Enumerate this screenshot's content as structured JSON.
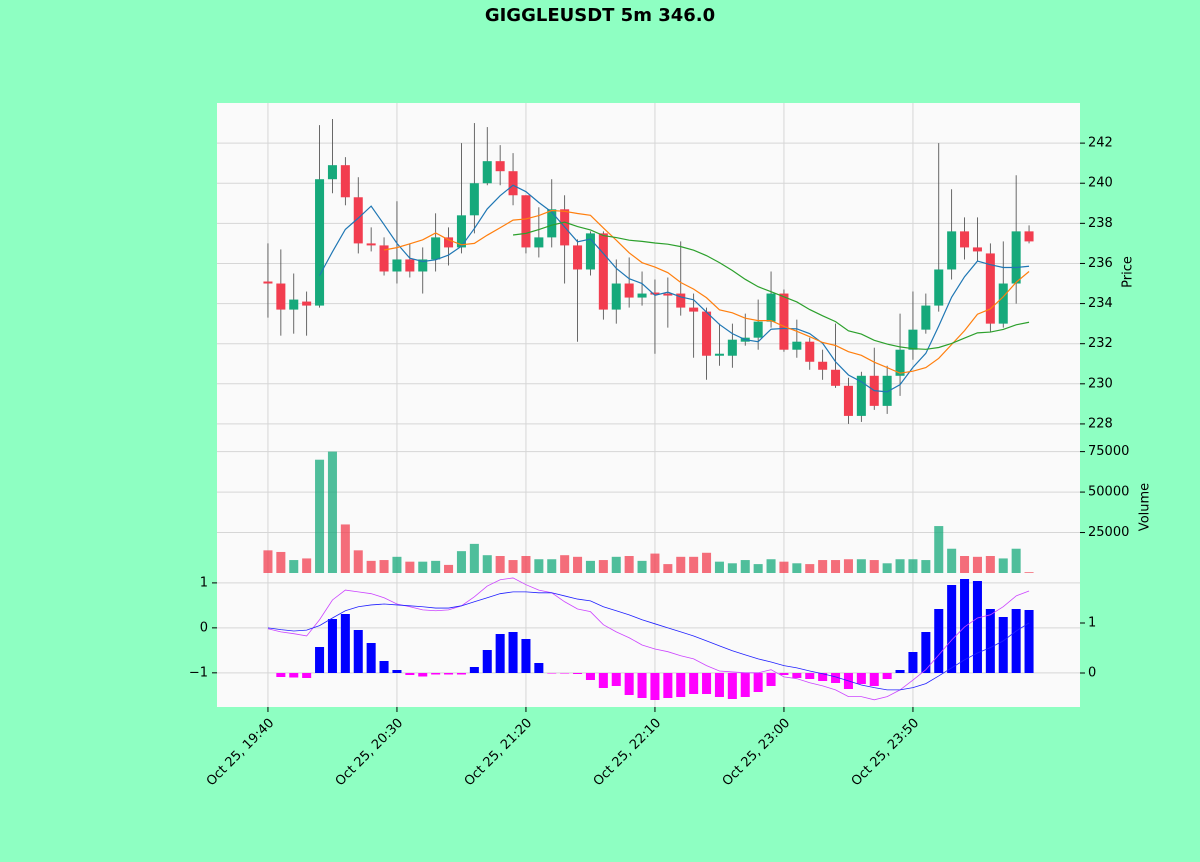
{
  "chart_data": {
    "type": "candlestick",
    "title": "GIGGLEUSDT 5m 346.0",
    "grid": true,
    "xlim": [
      -3.95,
      62.95
    ],
    "xticks": [
      {
        "value": 0,
        "label": "Oct 25, 19:40"
      },
      {
        "value": 10,
        "label": "Oct 25, 20:30"
      },
      {
        "value": 20,
        "label": "Oct 25, 21:20"
      },
      {
        "value": 30,
        "label": "Oct 25, 22:10"
      },
      {
        "value": 40,
        "label": "Oct 25, 23:00"
      },
      {
        "value": 50,
        "label": "Oct 25, 23:50"
      }
    ],
    "ylabel": "Price",
    "ylim": [
      226.7,
      244.0
    ],
    "yticks": [
      228,
      230,
      232,
      234,
      236,
      238,
      240,
      242
    ],
    "up_color": "#16a97b",
    "down_color": "#f23d4f",
    "open": [
      235.1,
      235.0,
      233.7,
      234.1,
      233.9,
      240.2,
      240.9,
      239.3,
      237.0,
      236.9,
      235.6,
      236.2,
      235.6,
      236.2,
      237.3,
      236.8,
      238.4,
      240.0,
      241.1,
      240.6,
      239.4,
      236.8,
      237.3,
      238.7,
      236.9,
      235.7,
      237.5,
      233.7,
      235.0,
      234.3,
      234.55,
      234.5,
      234.5,
      233.8,
      233.6,
      231.4,
      231.4,
      232.1,
      232.3,
      233.1,
      234.5,
      231.7,
      232.1,
      231.1,
      230.7,
      229.9,
      228.4,
      230.4,
      228.9,
      230.4,
      231.7,
      232.7,
      233.9,
      235.7,
      237.6,
      236.8,
      236.5,
      233.0,
      235.0,
      237.6
    ],
    "high": [
      237.0,
      236.7,
      235.5,
      234.6,
      242.9,
      243.2,
      241.3,
      240.3,
      237.8,
      237.3,
      239.1,
      237.0,
      236.8,
      238.5,
      237.8,
      242.0,
      243.0,
      242.8,
      241.9,
      241.5,
      239.4,
      238.8,
      240.2,
      239.4,
      237.2,
      237.6,
      237.6,
      236.2,
      236.3,
      235.6,
      235.2,
      235.3,
      237.1,
      234.5,
      233.8,
      233.0,
      233.0,
      233.5,
      234.2,
      235.6,
      234.7,
      233.2,
      232.3,
      231.7,
      233.0,
      230.3,
      230.6,
      231.8,
      230.9,
      233.5,
      234.6,
      234.5,
      242.0,
      239.7,
      238.3,
      238.3,
      237.0,
      237.1,
      240.4,
      237.9
    ],
    "low": [
      233.3,
      232.4,
      232.5,
      232.4,
      233.8,
      239.5,
      238.9,
      236.5,
      236.6,
      235.4,
      235.0,
      235.3,
      234.5,
      235.6,
      235.9,
      236.5,
      237.5,
      239.9,
      239.9,
      238.9,
      236.5,
      236.3,
      236.8,
      235.0,
      232.1,
      235.4,
      233.2,
      233.0,
      233.8,
      233.9,
      231.5,
      232.8,
      233.4,
      231.3,
      230.2,
      230.9,
      230.8,
      231.9,
      231.7,
      232.8,
      231.6,
      231.3,
      230.7,
      230.2,
      229.8,
      228.0,
      228.1,
      228.7,
      228.5,
      229.4,
      231.2,
      232.5,
      233.6,
      235.2,
      236.2,
      236.1,
      232.6,
      232.8,
      234.0,
      237.0
    ],
    "close": [
      235.0,
      233.7,
      234.2,
      233.9,
      240.2,
      240.9,
      239.3,
      237.0,
      236.9,
      235.6,
      236.2,
      235.6,
      236.2,
      237.3,
      236.8,
      238.4,
      240.0,
      241.1,
      240.6,
      239.4,
      236.8,
      237.3,
      238.7,
      236.9,
      235.7,
      237.5,
      233.7,
      235.0,
      234.3,
      234.5,
      234.45,
      234.4,
      233.8,
      233.6,
      231.4,
      231.5,
      232.2,
      232.3,
      233.1,
      234.5,
      231.7,
      232.1,
      231.1,
      230.7,
      229.9,
      228.4,
      230.4,
      228.9,
      230.4,
      231.7,
      232.7,
      233.9,
      235.7,
      237.6,
      236.8,
      236.6,
      233.0,
      235.0,
      237.6,
      237.1
    ],
    "moving_averages": [
      {
        "color": "#1f77b4",
        "values": [
          null,
          null,
          null,
          null,
          235.4,
          236.58,
          237.7,
          238.26,
          238.86,
          237.94,
          237.0,
          236.26,
          236.1,
          236.18,
          236.42,
          236.86,
          237.74,
          238.72,
          239.38,
          239.9,
          239.58,
          239.04,
          238.56,
          237.82,
          237.08,
          237.22,
          236.5,
          235.76,
          235.24,
          235.0,
          234.41,
          234.57,
          234.33,
          234.19,
          233.57,
          232.96,
          232.5,
          232.2,
          232.1,
          232.72,
          232.76,
          232.74,
          232.5,
          232.02,
          231.1,
          230.44,
          230.1,
          229.66,
          229.6,
          229.96,
          230.82,
          231.52,
          232.88,
          234.32,
          235.34,
          236.12,
          235.94,
          235.8,
          235.8,
          235.86
        ]
      },
      {
        "color": "#ff7f0e",
        "values": [
          null,
          null,
          null,
          null,
          null,
          null,
          null,
          null,
          null,
          236.67,
          236.79,
          236.98,
          237.18,
          237.52,
          237.18,
          236.93,
          237.0,
          237.41,
          237.78,
          238.16,
          238.22,
          238.39,
          238.64,
          238.6,
          238.49,
          238.4,
          237.77,
          237.16,
          236.53,
          236.04,
          235.82,
          235.54,
          235.05,
          234.72,
          234.29,
          233.69,
          233.54,
          233.27,
          233.15,
          233.15,
          232.86,
          232.62,
          232.35,
          232.06,
          231.91,
          231.6,
          231.42,
          231.08,
          230.81,
          230.53,
          230.63,
          230.81,
          231.27,
          231.96,
          232.65,
          233.47,
          233.73,
          234.34,
          235.06,
          235.6
        ]
      },
      {
        "color": "#2ca02c",
        "values": [
          null,
          null,
          null,
          null,
          null,
          null,
          null,
          null,
          null,
          null,
          null,
          null,
          null,
          null,
          null,
          null,
          null,
          null,
          null,
          237.42,
          237.5,
          237.69,
          237.91,
          238.06,
          237.84,
          237.67,
          237.39,
          237.29,
          237.16,
          237.1,
          237.02,
          236.96,
          236.84,
          236.66,
          236.39,
          236.04,
          235.65,
          235.21,
          234.84,
          234.59,
          234.34,
          234.08,
          233.7,
          233.39,
          233.1,
          232.64,
          232.48,
          232.17,
          231.98,
          231.84,
          231.75,
          231.72,
          231.81,
          232.01,
          232.28,
          232.54,
          232.58,
          232.71,
          232.94,
          233.07
        ]
      }
    ],
    "volume": {
      "ylabel": "Volume",
      "ylim": [
        0,
        76000
      ],
      "yticks": [
        25000,
        50000,
        75000
      ],
      "values": [
        14000,
        13000,
        8000,
        9000,
        70000,
        75000,
        30000,
        14000,
        7500,
        8000,
        10000,
        7000,
        7000,
        7500,
        5000,
        13500,
        18000,
        11000,
        10500,
        8000,
        10500,
        8500,
        8500,
        11000,
        10000,
        7500,
        8000,
        10000,
        10500,
        7500,
        12000,
        5500,
        10000,
        10000,
        12500,
        7000,
        6000,
        8000,
        5500,
        8500,
        7000,
        6000,
        5500,
        8000,
        8000,
        8500,
        8500,
        8000,
        6000,
        8500,
        8500,
        8000,
        29000,
        15000,
        10500,
        10000,
        10500,
        9000,
        15000,
        500
      ]
    },
    "macd": {
      "ylim": [
        -1.76,
        1.22
      ],
      "yticks": [
        1,
        0,
        {
          "value": -1,
          "label": "−1"
        }
      ],
      "y2lim": [
        -0.68,
        2.0
      ],
      "y2ticks": [
        0,
        1
      ],
      "series": [
        {
          "color": "#cc44ff",
          "values": [
            -0.02,
            -0.09,
            -0.13,
            -0.18,
            0.18,
            0.62,
            0.84,
            0.8,
            0.76,
            0.67,
            0.53,
            0.47,
            0.4,
            0.38,
            0.4,
            0.49,
            0.69,
            0.93,
            1.07,
            1.11,
            0.96,
            0.84,
            0.78,
            0.58,
            0.42,
            0.36,
            0.07,
            -0.09,
            -0.22,
            -0.38,
            -0.47,
            -0.53,
            -0.62,
            -0.69,
            -0.84,
            -0.96,
            -0.98,
            -1.0,
            -1.0,
            -0.93,
            -1.09,
            -1.13,
            -1.22,
            -1.29,
            -1.38,
            -1.53,
            -1.53,
            -1.6,
            -1.53,
            -1.38,
            -1.16,
            -0.93,
            -0.6,
            -0.27,
            0.02,
            0.22,
            0.29,
            0.47,
            0.71,
            0.82
          ]
        },
        {
          "color": "#2020ff",
          "values": [
            0.0,
            -0.04,
            -0.07,
            -0.05,
            0.05,
            0.22,
            0.38,
            0.47,
            0.51,
            0.53,
            0.51,
            0.49,
            0.47,
            0.44,
            0.44,
            0.49,
            0.58,
            0.67,
            0.76,
            0.8,
            0.8,
            0.78,
            0.78,
            0.71,
            0.64,
            0.6,
            0.47,
            0.38,
            0.29,
            0.18,
            0.09,
            0.0,
            -0.09,
            -0.18,
            -0.29,
            -0.4,
            -0.51,
            -0.6,
            -0.69,
            -0.76,
            -0.84,
            -0.89,
            -0.96,
            -1.02,
            -1.09,
            -1.18,
            -1.27,
            -1.33,
            -1.38,
            -1.38,
            -1.33,
            -1.24,
            -1.07,
            -0.89,
            -0.71,
            -0.56,
            -0.44,
            -0.29,
            -0.07,
            0.11
          ]
        }
      ],
      "histogram": {
        "axis": "y2",
        "up_color": "#0000ff",
        "down_color": "#ff00ff",
        "values": [
          0,
          -0.08,
          -0.09,
          -0.1,
          0.52,
          1.08,
          1.18,
          0.86,
          0.6,
          0.24,
          0.06,
          -0.04,
          -0.07,
          -0.03,
          -0.03,
          -0.03,
          0.12,
          0.46,
          0.78,
          0.82,
          0.68,
          0.2,
          -0.01,
          -0.01,
          -0.02,
          -0.14,
          -0.3,
          -0.26,
          -0.44,
          -0.5,
          -0.54,
          -0.5,
          -0.48,
          -0.42,
          -0.42,
          -0.48,
          -0.52,
          -0.48,
          -0.38,
          -0.26,
          -0.04,
          -0.1,
          -0.12,
          -0.16,
          -0.2,
          -0.32,
          -0.22,
          -0.26,
          -0.12,
          0.06,
          0.42,
          0.82,
          1.28,
          1.76,
          1.88,
          1.84,
          1.28,
          1.12,
          1.28,
          1.26
        ]
      }
    }
  }
}
